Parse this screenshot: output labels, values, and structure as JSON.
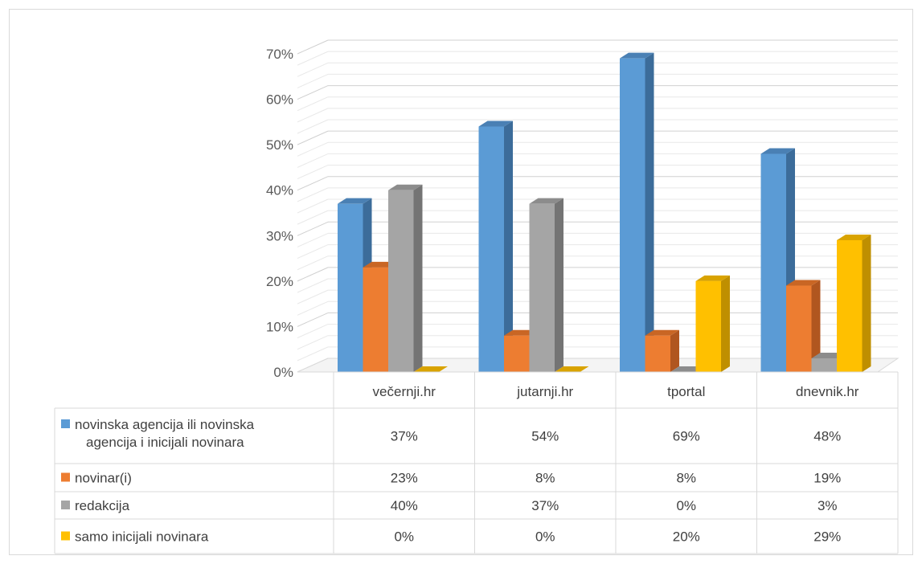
{
  "chart_data": {
    "type": "bar",
    "style": "3d-clustered-column-with-data-table",
    "categories": [
      "večernji.hr",
      "jutarnji.hr",
      "tportal",
      "dnevnik.hr"
    ],
    "y_ticks": [
      "0%",
      "10%",
      "20%",
      "30%",
      "40%",
      "50%",
      "60%",
      "70%"
    ],
    "ylim": [
      0,
      70
    ],
    "grid": true,
    "legend": "data-table-left",
    "series": [
      {
        "name_lines": [
          "novinska agencija ili novinska",
          "agencija i inicijali novinara"
        ],
        "values": [
          37,
          54,
          69,
          48
        ],
        "labels": [
          "37%",
          "54%",
          "69%",
          "48%"
        ],
        "color": "#5b9bd5",
        "side": "#3c6c9a",
        "top": "#4a80b4"
      },
      {
        "name_lines": [
          "novinar(i)"
        ],
        "values": [
          23,
          8,
          8,
          19
        ],
        "labels": [
          "23%",
          "8%",
          "8%",
          "19%"
        ],
        "color": "#ed7d31",
        "side": "#b0561f",
        "top": "#c96624"
      },
      {
        "name_lines": [
          "redakcija"
        ],
        "values": [
          40,
          37,
          0,
          3
        ],
        "labels": [
          "40%",
          "37%",
          "0%",
          "3%"
        ],
        "color": "#a5a5a5",
        "side": "#747474",
        "top": "#8c8c8c"
      },
      {
        "name_lines": [
          "samo inicijali novinara"
        ],
        "values": [
          0,
          0,
          20,
          29
        ],
        "labels": [
          "0%",
          "0%",
          "20%",
          "29%"
        ],
        "color": "#ffc000",
        "side": "#bf8f00",
        "top": "#d9a300"
      }
    ]
  }
}
